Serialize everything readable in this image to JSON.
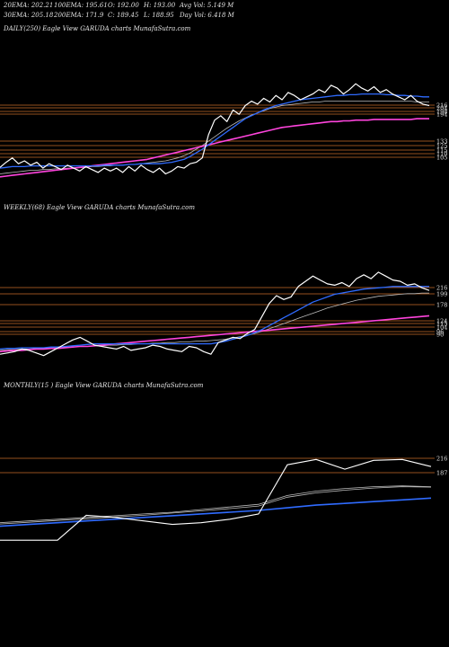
{
  "header": {
    "ema20": "20EMA: 202.21",
    "ema100": "100EMA: 195.61",
    "open": "O: 192.00",
    "high": "H: 193.00",
    "avg_vol": "Avg Vol: 5.149 M",
    "ema30": "30EMA: 205.18",
    "ema200": "200EMA: 171.9",
    "close": "C: 189.45",
    "low": "L: 188.95",
    "day_vol": "Day Vol: 6.418  M"
  },
  "colors": {
    "background": "#000000",
    "price": "#ffffff",
    "ema_blue": "#2f6bff",
    "ema_magenta": "#ff44dd",
    "level_line": "#c76a28",
    "ema_gray": "#bbbbbb"
  },
  "chart_data": [
    {
      "type": "line",
      "title": "DAILY(250) Eagle  View  GARUDA charts MunafaSutra.com",
      "y_ticks": [
        "216",
        "204",
        "198",
        "194",
        "133",
        "125",
        "115",
        "110",
        "105"
      ],
      "series": [
        {
          "values": [
            105,
            112,
            118,
            110,
            114,
            108,
            112,
            104,
            110,
            106,
            102,
            108,
            104,
            100,
            106,
            102,
            98,
            104,
            100,
            104,
            98,
            106,
            100,
            108,
            102,
            98,
            104,
            96,
            100,
            106,
            104,
            110,
            112,
            118,
            150,
            170,
            176,
            168,
            184,
            178,
            190,
            196,
            192,
            200,
            195,
            204,
            198,
            208,
            204,
            198,
            202,
            206,
            212,
            208,
            218,
            214,
            206,
            212,
            220,
            214,
            210,
            216,
            208,
            212,
            206,
            202,
            198,
            204,
            196,
            192,
            190
          ]
        },
        {
          "values": [
            104,
            105,
            106,
            106,
            106,
            107,
            107,
            107,
            107,
            107,
            107,
            107,
            107,
            107,
            107,
            107,
            107,
            108,
            108,
            108,
            108,
            109,
            109,
            110,
            110,
            110,
            110,
            111,
            112,
            114,
            116,
            120,
            125,
            130,
            136,
            142,
            148,
            154,
            160,
            166,
            172,
            176,
            180,
            184,
            187,
            190,
            192,
            194,
            196,
            198,
            199,
            200,
            201,
            202,
            203,
            204,
            204,
            205,
            205,
            206,
            206,
            206,
            206,
            205,
            205,
            204,
            204,
            203,
            203,
            202,
            202
          ]
        },
        {
          "values": [
            92,
            93,
            94,
            95,
            96,
            97,
            98,
            99,
            100,
            101,
            102,
            103,
            104,
            105,
            106,
            107,
            108,
            109,
            110,
            111,
            112,
            113,
            114,
            115,
            116,
            118,
            120,
            122,
            124,
            126,
            128,
            130,
            132,
            134,
            136,
            138,
            140,
            142,
            144,
            146,
            148,
            150,
            152,
            154,
            156,
            158,
            160,
            161,
            162,
            163,
            164,
            165,
            166,
            167,
            168,
            168,
            169,
            169,
            170,
            170,
            170,
            171,
            171,
            171,
            171,
            171,
            171,
            171,
            172,
            172,
            172
          ]
        },
        {
          "values": [
            96,
            97,
            98,
            99,
            100,
            101,
            101,
            102,
            102,
            103,
            103,
            104,
            104,
            105,
            105,
            106,
            106,
            107,
            107,
            108,
            108,
            109,
            109,
            110,
            111,
            112,
            113,
            114,
            116,
            118,
            121,
            125,
            130,
            135,
            141,
            147,
            153,
            159,
            164,
            169,
            173,
            177,
            180,
            183,
            186,
            188,
            190,
            191,
            192,
            193,
            194,
            195,
            195,
            196,
            196,
            196,
            196,
            196,
            196,
            196,
            196,
            196,
            196,
            196,
            196,
            196,
            196,
            196,
            195,
            195,
            195
          ]
        }
      ]
    },
    {
      "type": "line",
      "title": "WEEKLY(68) Eagle  View  GARUDA charts MunafaSutra.com",
      "y_ticks": [
        "216",
        "199",
        "178",
        "124",
        "115",
        "104",
        "96",
        "90"
      ],
      "series": [
        {
          "values": [
            92,
            94,
            96,
            100,
            98,
            94,
            90,
            96,
            102,
            108,
            114,
            118,
            112,
            106,
            104,
            102,
            100,
            104,
            98,
            100,
            102,
            106,
            104,
            100,
            98,
            96,
            104,
            102,
            96,
            92,
            110,
            114,
            118,
            116,
            124,
            130,
            150,
            170,
            182,
            176,
            180,
            196,
            204,
            212,
            206,
            200,
            198,
            202,
            196,
            208,
            214,
            208,
            218,
            212,
            206,
            204,
            198,
            200,
            194,
            190
          ]
        },
        {
          "values": [
            100,
            101,
            101,
            102,
            102,
            102,
            102,
            103,
            103,
            104,
            105,
            106,
            107,
            108,
            108,
            108,
            108,
            108,
            108,
            108,
            108,
            108,
            108,
            108,
            108,
            108,
            108,
            108,
            108,
            108,
            110,
            112,
            115,
            118,
            121,
            125,
            130,
            136,
            142,
            148,
            154,
            160,
            166,
            172,
            176,
            180,
            184,
            186,
            188,
            190,
            192,
            193,
            194,
            195,
            196,
            196,
            196,
            196,
            196,
            196
          ]
        },
        {
          "values": [
            96,
            97,
            98,
            98,
            99,
            100,
            100,
            101,
            101,
            102,
            103,
            104,
            104,
            105,
            106,
            107,
            108,
            109,
            110,
            111,
            112,
            113,
            114,
            115,
            116,
            117,
            118,
            119,
            120,
            121,
            122,
            123,
            124,
            125,
            126,
            127,
            128,
            129,
            130,
            131,
            132,
            133,
            134,
            135,
            136,
            137,
            138,
            139,
            140,
            141,
            142,
            143,
            144,
            145,
            146,
            147,
            148,
            149,
            150,
            151
          ]
        },
        {
          "values": [
            98,
            99,
            99,
            100,
            100,
            101,
            101,
            102,
            102,
            103,
            103,
            104,
            104,
            105,
            105,
            106,
            106,
            107,
            107,
            108,
            108,
            109,
            109,
            110,
            110,
            111,
            111,
            112,
            112,
            113,
            114,
            115,
            117,
            119,
            121,
            124,
            127,
            131,
            135,
            139,
            143,
            147,
            151,
            155,
            159,
            163,
            166,
            169,
            172,
            175,
            177,
            179,
            181,
            182,
            183,
            184,
            185,
            185,
            186,
            186
          ]
        }
      ]
    },
    {
      "type": "line",
      "title": "MONTHLY(15                    ) Eagle  View  GARUDA charts MunafaSutra.com",
      "y_ticks": [
        "216",
        "187"
      ],
      "series": [
        {
          "values": [
            48,
            48,
            48,
            105,
            100,
            92,
            84,
            88,
            96,
            108,
            220,
            232,
            210,
            230,
            232,
            216
          ]
        },
        {
          "values": [
            88,
            92,
            96,
            100,
            104,
            108,
            112,
            118,
            124,
            130,
            150,
            160,
            166,
            170,
            172,
            170
          ]
        },
        {
          "values": [
            85,
            89,
            93,
            97,
            101,
            105,
            110,
            115,
            120,
            126,
            146,
            156,
            162,
            167,
            170,
            169
          ]
        },
        {
          "values": [
            80,
            84,
            88,
            92,
            96,
            100,
            104,
            108,
            112,
            116,
            122,
            128,
            132,
            136,
            140,
            144
          ]
        }
      ]
    }
  ]
}
